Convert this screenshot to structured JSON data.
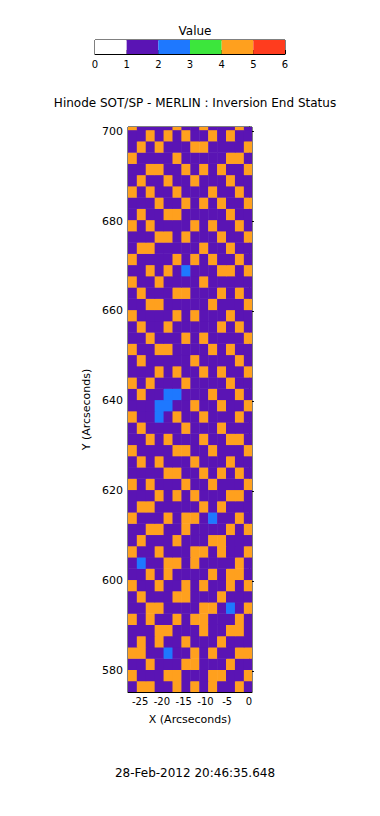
{
  "chart_data": {
    "type": "heatmap",
    "title": "Hinode SOT/SP - MERLIN : Inversion End Status",
    "annotation": "28-Feb-2012 20:46:35.648",
    "x_label": "X (Arcseconds)",
    "y_label": "Y (Arcseconds)",
    "xlim": [
      -27.8,
      0.7
    ],
    "xticks": [
      -25,
      -20,
      -15,
      -10,
      -5,
      0
    ],
    "ylim": [
      575.3,
      700.9
    ],
    "yticks": [
      580,
      600,
      620,
      640,
      660,
      680,
      700
    ],
    "x": [
      -26.8,
      -24.75,
      -22.7,
      -20.65,
      -18.6,
      -16.55,
      -14.5,
      -12.45,
      -10.4,
      -8.35,
      -6.3,
      -4.25,
      -2.2,
      -0.15
    ],
    "y": [
      576.55,
      579.05,
      581.55,
      584.05,
      586.55,
      589.05,
      591.55,
      594.05,
      596.55,
      599.05,
      601.55,
      604.05,
      606.55,
      609.05,
      611.55,
      614.05,
      616.55,
      619.05,
      621.55,
      624.05,
      626.55,
      629.05,
      631.55,
      634.05,
      636.55,
      639.05,
      641.55,
      644.05,
      646.55,
      649.05,
      651.55,
      654.05,
      656.55,
      659.05,
      661.55,
      664.05,
      666.55,
      669.05,
      671.55,
      674.05,
      676.55,
      679.05,
      681.55,
      684.05,
      686.55,
      689.05,
      691.55,
      694.05,
      696.55,
      699.05,
      701.55
    ],
    "cells": [
      [
        1,
        4,
        4,
        1,
        1,
        4,
        1,
        4,
        1,
        4,
        1,
        1,
        4,
        1
      ],
      [
        4,
        1,
        1,
        1,
        4,
        4,
        1,
        1,
        1,
        4,
        4,
        1,
        1,
        4
      ],
      [
        1,
        1,
        4,
        1,
        1,
        1,
        4,
        4,
        1,
        1,
        1,
        4,
        1,
        1
      ],
      [
        4,
        4,
        1,
        1,
        2,
        1,
        1,
        4,
        1,
        4,
        1,
        1,
        4,
        4
      ],
      [
        1,
        4,
        1,
        4,
        1,
        1,
        4,
        1,
        1,
        1,
        4,
        1,
        1,
        1
      ],
      [
        1,
        1,
        1,
        4,
        4,
        1,
        1,
        1,
        4,
        1,
        1,
        4,
        4,
        1
      ],
      [
        4,
        1,
        4,
        1,
        1,
        4,
        1,
        4,
        4,
        1,
        1,
        1,
        4,
        1
      ],
      [
        1,
        1,
        4,
        4,
        1,
        1,
        1,
        1,
        4,
        4,
        1,
        2,
        1,
        4
      ],
      [
        1,
        4,
        1,
        1,
        1,
        4,
        4,
        1,
        1,
        1,
        4,
        1,
        1,
        1
      ],
      [
        4,
        1,
        1,
        4,
        1,
        1,
        4,
        1,
        4,
        1,
        1,
        4,
        1,
        4
      ],
      [
        1,
        1,
        4,
        1,
        4,
        1,
        1,
        1,
        1,
        4,
        1,
        4,
        4,
        1
      ],
      [
        1,
        2,
        1,
        1,
        4,
        4,
        1,
        4,
        1,
        1,
        1,
        1,
        4,
        1
      ],
      [
        4,
        1,
        1,
        4,
        1,
        1,
        1,
        4,
        4,
        1,
        4,
        1,
        1,
        4
      ],
      [
        1,
        4,
        1,
        1,
        1,
        4,
        1,
        1,
        1,
        4,
        4,
        1,
        1,
        1
      ],
      [
        1,
        1,
        4,
        4,
        1,
        1,
        4,
        1,
        1,
        1,
        1,
        4,
        1,
        4
      ],
      [
        4,
        1,
        1,
        1,
        4,
        1,
        4,
        4,
        1,
        2,
        1,
        1,
        4,
        1
      ],
      [
        1,
        4,
        4,
        1,
        1,
        1,
        1,
        1,
        4,
        1,
        4,
        1,
        1,
        1
      ],
      [
        1,
        1,
        1,
        4,
        1,
        4,
        1,
        4,
        1,
        1,
        1,
        4,
        4,
        1
      ],
      [
        4,
        1,
        4,
        1,
        1,
        1,
        4,
        1,
        1,
        4,
        1,
        1,
        1,
        4
      ],
      [
        1,
        1,
        1,
        1,
        4,
        4,
        1,
        1,
        4,
        1,
        4,
        1,
        4,
        1
      ],
      [
        1,
        4,
        1,
        4,
        1,
        1,
        1,
        4,
        1,
        1,
        1,
        4,
        1,
        1
      ],
      [
        4,
        1,
        1,
        1,
        1,
        4,
        4,
        1,
        1,
        4,
        1,
        1,
        1,
        4
      ],
      [
        1,
        1,
        4,
        1,
        4,
        1,
        1,
        1,
        4,
        1,
        1,
        4,
        4,
        1
      ],
      [
        1,
        4,
        1,
        1,
        1,
        1,
        4,
        1,
        1,
        1,
        4,
        1,
        1,
        1
      ],
      [
        4,
        1,
        1,
        2,
        1,
        4,
        1,
        1,
        4,
        1,
        1,
        1,
        4,
        1
      ],
      [
        1,
        1,
        1,
        2,
        2,
        1,
        1,
        4,
        1,
        1,
        4,
        1,
        1,
        4
      ],
      [
        1,
        4,
        1,
        1,
        2,
        2,
        1,
        1,
        1,
        4,
        1,
        1,
        4,
        1
      ],
      [
        4,
        1,
        4,
        1,
        1,
        1,
        4,
        1,
        1,
        1,
        1,
        4,
        1,
        1
      ],
      [
        1,
        1,
        1,
        4,
        1,
        4,
        1,
        1,
        4,
        1,
        4,
        1,
        1,
        4
      ],
      [
        1,
        4,
        1,
        1,
        1,
        1,
        1,
        4,
        1,
        1,
        1,
        1,
        4,
        1
      ],
      [
        4,
        1,
        1,
        4,
        4,
        1,
        1,
        1,
        1,
        4,
        1,
        4,
        1,
        1
      ],
      [
        1,
        1,
        4,
        1,
        1,
        1,
        4,
        1,
        4,
        1,
        1,
        1,
        1,
        4
      ],
      [
        1,
        4,
        1,
        1,
        4,
        1,
        1,
        1,
        1,
        1,
        4,
        1,
        4,
        1
      ],
      [
        4,
        1,
        1,
        1,
        1,
        4,
        1,
        4,
        1,
        1,
        1,
        4,
        1,
        1
      ],
      [
        1,
        1,
        4,
        4,
        1,
        1,
        1,
        1,
        1,
        4,
        1,
        1,
        1,
        4
      ],
      [
        1,
        4,
        1,
        1,
        1,
        4,
        4,
        1,
        1,
        1,
        4,
        1,
        4,
        1
      ],
      [
        4,
        1,
        1,
        4,
        1,
        1,
        1,
        1,
        4,
        1,
        1,
        1,
        1,
        1
      ],
      [
        1,
        1,
        4,
        1,
        4,
        1,
        2,
        1,
        1,
        1,
        4,
        4,
        1,
        4
      ],
      [
        4,
        1,
        1,
        1,
        1,
        4,
        1,
        4,
        1,
        4,
        1,
        1,
        4,
        1
      ],
      [
        1,
        4,
        4,
        1,
        1,
        1,
        1,
        1,
        4,
        1,
        1,
        4,
        1,
        1
      ],
      [
        1,
        1,
        1,
        4,
        4,
        1,
        4,
        1,
        1,
        1,
        4,
        1,
        1,
        4
      ],
      [
        4,
        1,
        4,
        1,
        1,
        1,
        1,
        4,
        1,
        4,
        1,
        1,
        4,
        1
      ],
      [
        1,
        4,
        1,
        1,
        4,
        4,
        1,
        1,
        1,
        1,
        1,
        4,
        1,
        1
      ],
      [
        1,
        1,
        1,
        4,
        1,
        1,
        4,
        1,
        4,
        1,
        4,
        1,
        1,
        4
      ],
      [
        4,
        1,
        4,
        1,
        1,
        4,
        1,
        1,
        1,
        4,
        1,
        1,
        4,
        1
      ],
      [
        1,
        4,
        1,
        1,
        4,
        1,
        1,
        4,
        1,
        1,
        1,
        4,
        1,
        1
      ],
      [
        1,
        1,
        4,
        4,
        1,
        1,
        4,
        1,
        4,
        1,
        4,
        1,
        1,
        4
      ],
      [
        4,
        1,
        1,
        1,
        1,
        4,
        1,
        1,
        1,
        1,
        1,
        4,
        4,
        1
      ],
      [
        1,
        4,
        1,
        4,
        1,
        1,
        1,
        4,
        4,
        1,
        1,
        1,
        1,
        4
      ],
      [
        1,
        1,
        4,
        1,
        4,
        1,
        4,
        1,
        1,
        4,
        1,
        4,
        1,
        1
      ],
      [
        4,
        1,
        1,
        1,
        1,
        4,
        1,
        1,
        4,
        1,
        1,
        1,
        4,
        1
      ]
    ],
    "colorbar": {
      "title": "Value",
      "range": [
        0,
        6
      ],
      "ticks": [
        0,
        1,
        2,
        3,
        4,
        5,
        6
      ],
      "colors": [
        "#ffffff",
        "#5a14b4",
        "#1e78ff",
        "#3ce63c",
        "#ffa01e",
        "#ff3c1e"
      ]
    }
  }
}
